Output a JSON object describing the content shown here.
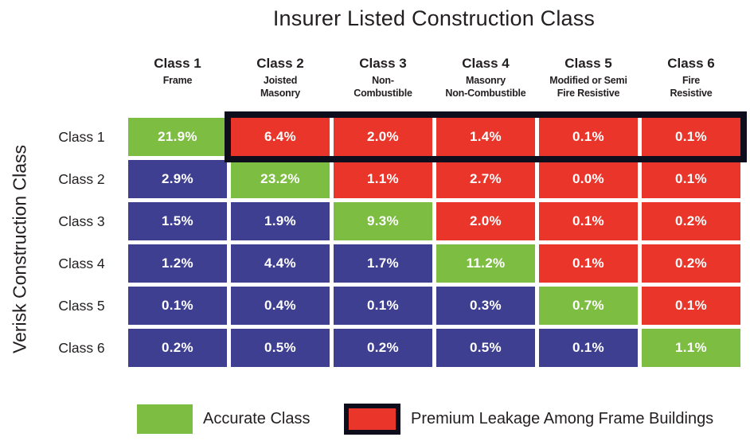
{
  "title": "Insurer Listed Construction Class",
  "y_axis_label": "Verisk Construction Class",
  "colors": {
    "accurate": "#7CBD42",
    "leakage": "#E9352A",
    "other": "#3E3F90",
    "highlight_border": "#0D0D1B",
    "cell_text": "#FFFFFF",
    "label_text": "#231F20"
  },
  "columns": [
    {
      "cls": "Class 1",
      "sub": "Frame"
    },
    {
      "cls": "Class 2",
      "sub": "Joisted\nMasonry"
    },
    {
      "cls": "Class 3",
      "sub": "Non-\nCombustible"
    },
    {
      "cls": "Class 4",
      "sub": "Masonry\nNon-Combustible"
    },
    {
      "cls": "Class 5",
      "sub": "Modified or Semi\nFire Resistive"
    },
    {
      "cls": "Class 6",
      "sub": "Fire\nResistive"
    }
  ],
  "rows": [
    {
      "label": "Class 1",
      "cells": [
        {
          "value": "21.9%",
          "type": "accurate"
        },
        {
          "value": "6.4%",
          "type": "leakage"
        },
        {
          "value": "2.0%",
          "type": "leakage"
        },
        {
          "value": "1.4%",
          "type": "leakage"
        },
        {
          "value": "0.1%",
          "type": "leakage"
        },
        {
          "value": "0.1%",
          "type": "leakage"
        }
      ]
    },
    {
      "label": "Class 2",
      "cells": [
        {
          "value": "2.9%",
          "type": "other"
        },
        {
          "value": "23.2%",
          "type": "accurate"
        },
        {
          "value": "1.1%",
          "type": "leakage"
        },
        {
          "value": "2.7%",
          "type": "leakage"
        },
        {
          "value": "0.0%",
          "type": "leakage"
        },
        {
          "value": "0.1%",
          "type": "leakage"
        }
      ]
    },
    {
      "label": "Class 3",
      "cells": [
        {
          "value": "1.5%",
          "type": "other"
        },
        {
          "value": "1.9%",
          "type": "other"
        },
        {
          "value": "9.3%",
          "type": "accurate"
        },
        {
          "value": "2.0%",
          "type": "leakage"
        },
        {
          "value": "0.1%",
          "type": "leakage"
        },
        {
          "value": "0.2%",
          "type": "leakage"
        }
      ]
    },
    {
      "label": "Class 4",
      "cells": [
        {
          "value": "1.2%",
          "type": "other"
        },
        {
          "value": "4.4%",
          "type": "other"
        },
        {
          "value": "1.7%",
          "type": "other"
        },
        {
          "value": "11.2%",
          "type": "accurate"
        },
        {
          "value": "0.1%",
          "type": "leakage"
        },
        {
          "value": "0.2%",
          "type": "leakage"
        }
      ]
    },
    {
      "label": "Class 5",
      "cells": [
        {
          "value": "0.1%",
          "type": "other"
        },
        {
          "value": "0.4%",
          "type": "other"
        },
        {
          "value": "0.1%",
          "type": "other"
        },
        {
          "value": "0.3%",
          "type": "other"
        },
        {
          "value": "0.7%",
          "type": "accurate"
        },
        {
          "value": "0.1%",
          "type": "leakage"
        }
      ]
    },
    {
      "label": "Class 6",
      "cells": [
        {
          "value": "0.2%",
          "type": "other"
        },
        {
          "value": "0.5%",
          "type": "other"
        },
        {
          "value": "0.2%",
          "type": "other"
        },
        {
          "value": "0.5%",
          "type": "other"
        },
        {
          "value": "0.1%",
          "type": "other"
        },
        {
          "value": "1.1%",
          "type": "accurate"
        }
      ]
    }
  ],
  "legend": [
    {
      "label": "Accurate Class",
      "type": "accurate"
    },
    {
      "label": "Premium Leakage Among Frame Buildings",
      "type": "leakage"
    }
  ],
  "chart_data": {
    "type": "heatmap",
    "title": "Insurer Listed Construction Class",
    "x_axis": {
      "label": "Insurer Listed Construction Class",
      "categories": [
        "Class 1",
        "Class 2",
        "Class 3",
        "Class 4",
        "Class 5",
        "Class 6"
      ],
      "category_sublabels": [
        "Frame",
        "Joisted Masonry",
        "Non-Combustible",
        "Masonry Non-Combustible",
        "Modified or Semi Fire Resistive",
        "Fire Resistive"
      ]
    },
    "y_axis": {
      "label": "Verisk Construction Class",
      "categories": [
        "Class 1",
        "Class 2",
        "Class 3",
        "Class 4",
        "Class 5",
        "Class 6"
      ]
    },
    "unit": "percent",
    "values": [
      [
        21.9,
        6.4,
        2.0,
        1.4,
        0.1,
        0.1
      ],
      [
        2.9,
        23.2,
        1.1,
        2.7,
        0.0,
        0.1
      ],
      [
        1.5,
        1.9,
        9.3,
        2.0,
        0.1,
        0.2
      ],
      [
        1.2,
        4.4,
        1.7,
        11.2,
        0.1,
        0.2
      ],
      [
        0.1,
        0.4,
        0.1,
        0.3,
        0.7,
        0.1
      ],
      [
        0.2,
        0.5,
        0.2,
        0.5,
        0.1,
        1.1
      ]
    ],
    "cell_color_coding": "diagonal cells green (Accurate Class); cells above diagonal red (Premium Leakage); cells below diagonal blue",
    "highlight_box": "thick black outline around row Class 1, columns Class 2 through Class 6",
    "legend": [
      "Accurate Class",
      "Premium Leakage Among Frame Buildings"
    ],
    "legend_position": "bottom",
    "grid": false
  }
}
